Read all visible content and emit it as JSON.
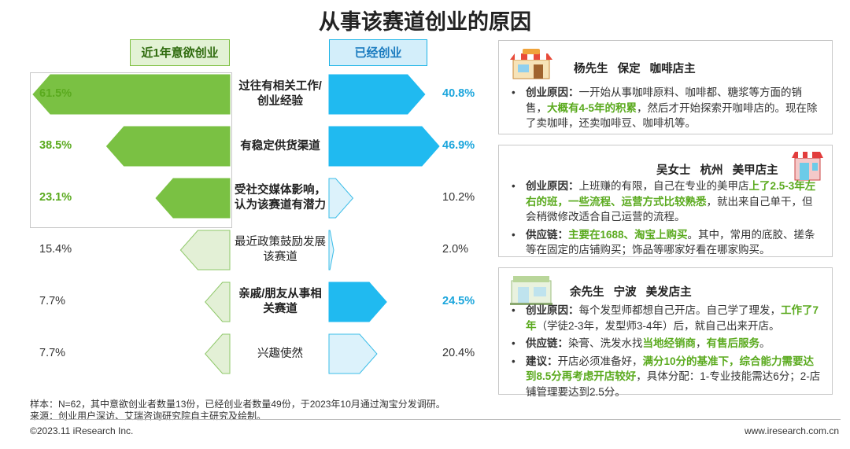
{
  "title": "从事该赛道创业的原因",
  "legend": {
    "left": "近1年意欲创业",
    "right": "已经创业"
  },
  "chart_data": {
    "type": "bar",
    "title": "从事该赛道创业的原因",
    "categories": [
      "过往有相关工作/创业经验",
      "有稳定供货渠道",
      "受社交媒体影响，认为该赛道有潜力",
      "最近政策鼓励发展该赛道",
      "亲戚/朋友从事相关赛道",
      "兴趣使然"
    ],
    "category_lines": [
      [
        "过往有相关工作/",
        "创业经验"
      ],
      [
        "有稳定供货渠道"
      ],
      [
        "受社交媒体影响，",
        "认为该赛道有潜力"
      ],
      [
        "最近政策鼓励发展",
        "该赛道"
      ],
      [
        "亲戚/朋友从事相",
        "关赛道"
      ],
      [
        "兴趣使然"
      ]
    ],
    "series": [
      {
        "name": "近1年意欲创业",
        "values": [
          61.5,
          38.5,
          23.1,
          15.4,
          7.7,
          7.7
        ],
        "labels": [
          "61.5%",
          "38.5%",
          "23.1%",
          "15.4%",
          "7.7%",
          "7.7%"
        ]
      },
      {
        "name": "已经创业",
        "values": [
          40.8,
          46.9,
          10.2,
          2.0,
          24.5,
          20.4
        ],
        "labels": [
          "40.8%",
          "46.9%",
          "10.2%",
          "2.0%",
          "24.5%",
          "20.4%"
        ]
      }
    ],
    "highlight_left": [
      true,
      true,
      true,
      false,
      false,
      false
    ],
    "highlight_right": [
      true,
      true,
      false,
      false,
      true,
      false
    ],
    "colors": {
      "left_highlight": "#7ac143",
      "left_light": "#e3f0d6",
      "left_border": "#8fc86a",
      "right_highlight": "#20baf0",
      "right_light": "#dcf2fb",
      "right_border": "#3bbde8",
      "left_label": "#5aaa1e",
      "right_label": "#1aa5dc"
    }
  },
  "cards": [
    {
      "head": "杨先生   保定   咖啡店主",
      "icon": "cafe-shop-icon",
      "bullets": [
        {
          "parts": [
            {
              "t": "创业原因：",
              "s": "k"
            },
            {
              "t": "一开始从事咖啡原料、咖啡都、糖浆等方面的销售，"
            },
            {
              "t": "大概有4-5年的积累",
              "s": "hl"
            },
            {
              "t": "，然后才开始探索开咖啡店的。现在除了卖咖啡，还卖咖啡豆、咖啡机等。"
            }
          ]
        }
      ]
    },
    {
      "head": "吴女士   杭州   美甲店主",
      "icon": "nail-shop-icon",
      "bullets": [
        {
          "parts": [
            {
              "t": "创业原因：",
              "s": "k"
            },
            {
              "t": "上班赚的有限，自己在专业的美甲店"
            },
            {
              "t": "上了2.5-3年左右的班，一些流程、运营方式比较熟悉",
              "s": "hl"
            },
            {
              "t": "，就出来自己单干，但会稍微修改适合自己运营的流程。"
            }
          ]
        },
        {
          "parts": [
            {
              "t": "供应链：",
              "s": "k"
            },
            {
              "t": "主要在1688、淘宝上购买",
              "s": "hl"
            },
            {
              "t": "。其中，常用的底胶、搓条等在固定的店铺购买；饰品等哪家好看在哪家购买。"
            }
          ]
        }
      ]
    },
    {
      "head": "余先生   宁波   美发店主",
      "icon": "hair-salon-icon",
      "bullets": [
        {
          "parts": [
            {
              "t": "创业原因：",
              "s": "k"
            },
            {
              "t": "每个发型师都想自己开店。自己学了理发，"
            },
            {
              "t": "工作了7年",
              "s": "hl"
            },
            {
              "t": "（学徒2-3年，发型师3-4年）后，就自己出来开店。"
            }
          ]
        },
        {
          "parts": [
            {
              "t": "供应链：",
              "s": "k"
            },
            {
              "t": "染膏、洗发水找"
            },
            {
              "t": "当地经销商",
              "s": "hl"
            },
            {
              "t": "，"
            },
            {
              "t": "有售后服务",
              "s": "hl"
            },
            {
              "t": "。"
            }
          ]
        },
        {
          "parts": [
            {
              "t": "建议：",
              "s": "k"
            },
            {
              "t": "开店必须准备好，"
            },
            {
              "t": "满分10分的基准下，综合能力需要达到8.5分再考虑开店较好",
              "s": "hl"
            },
            {
              "t": "，具体分配：1-专业技能需达6分；2-店铺管理要达到2.5分。"
            }
          ]
        }
      ]
    }
  ],
  "footnotes": {
    "sample": "样本：N=62，其中意欲创业者数量13份，已经创业者数量49份，于2023年10月通过淘宝分发调研。",
    "source": "来源：创业用户深访、艾瑞咨询研究院自主研究及绘制。"
  },
  "footer": {
    "left": "©2023.11 iResearch Inc.",
    "right": "www.iresearch.com.cn"
  }
}
